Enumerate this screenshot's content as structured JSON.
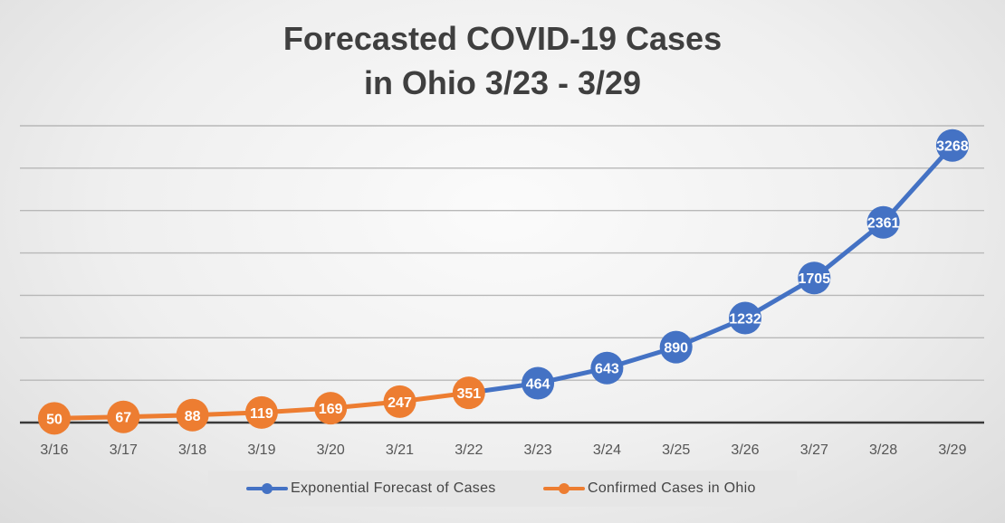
{
  "chart_data": {
    "type": "line",
    "title": [
      "Forecasted COVID-19 Cases",
      "in Ohio 3/23 - 3/29"
    ],
    "categories": [
      "3/16",
      "3/17",
      "3/18",
      "3/19",
      "3/20",
      "3/21",
      "3/22",
      "3/23",
      "3/24",
      "3/25",
      "3/26",
      "3/27",
      "3/28",
      "3/29"
    ],
    "series": [
      {
        "name": "Exponential Forecast of Cases",
        "color": "#4472c4",
        "values": [
          null,
          null,
          null,
          null,
          null,
          null,
          351,
          464,
          643,
          890,
          1232,
          1705,
          2361,
          3268
        ]
      },
      {
        "name": "Confirmed Cases in Ohio",
        "color": "#ed7d31",
        "values": [
          50,
          67,
          88,
          119,
          169,
          247,
          351,
          null,
          null,
          null,
          null,
          null,
          null,
          null
        ]
      }
    ],
    "ylim": [
      0,
      3500
    ],
    "y_gridlines": [
      500,
      1000,
      1500,
      2000,
      2500,
      3000,
      3500
    ],
    "y_tick_labels_shown": false,
    "data_labels": true,
    "grid": true,
    "legend_position": "bottom"
  }
}
